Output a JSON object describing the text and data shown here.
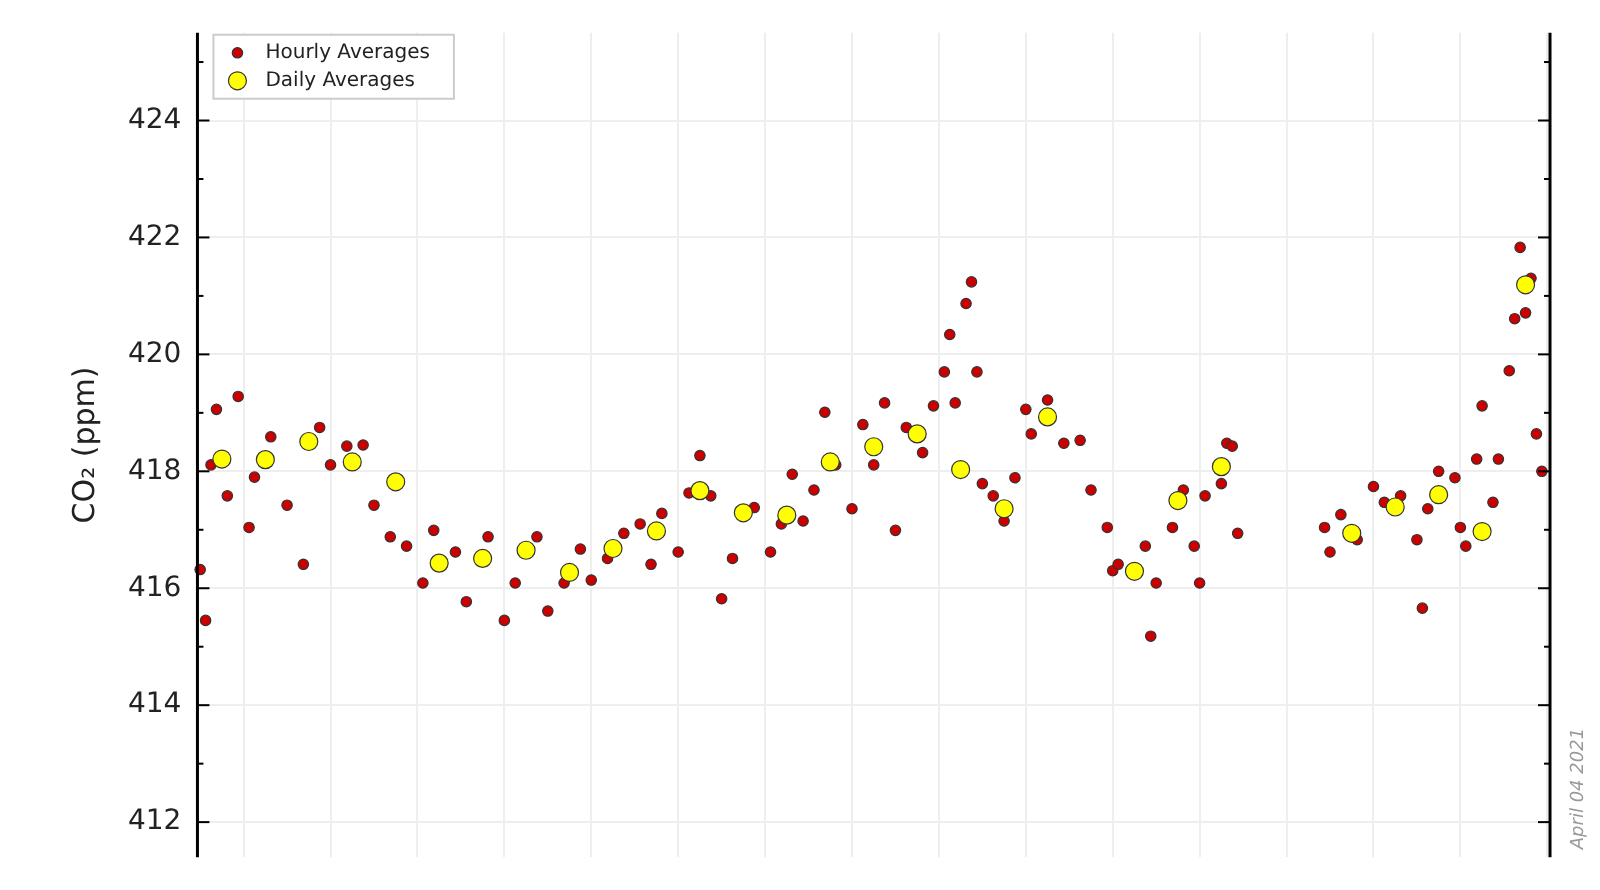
{
  "chart_data": {
    "type": "scatter",
    "ylabel": "CO₂ (ppm)",
    "annotations": [
      "April 04 2021"
    ],
    "categories": [
      null,
      null,
      null,
      null,
      null,
      null,
      null,
      null,
      null,
      null,
      null,
      null,
      null,
      null,
      null,
      null,
      null,
      null,
      null,
      null,
      null,
      null,
      null,
      null,
      null,
      null,
      null,
      null,
      null,
      null,
      null,
      null,
      null,
      null,
      null,
      null,
      null,
      null,
      null,
      null,
      null,
      null,
      null,
      null,
      null,
      null,
      null,
      null,
      null,
      null,
      null,
      null,
      null,
      null,
      null,
      null,
      null,
      null,
      null,
      null,
      null,
      null,
      null,
      null,
      null,
      null,
      null,
      null,
      null,
      null,
      null,
      null,
      null,
      null,
      null,
      null,
      null,
      null,
      null,
      null,
      null,
      null,
      null,
      null,
      null,
      null,
      null,
      null,
      null,
      null,
      null,
      null,
      null,
      null,
      null,
      null,
      null,
      null,
      null,
      null,
      null,
      null,
      null,
      null,
      null,
      null,
      null,
      null,
      null,
      null,
      null,
      null,
      null,
      null,
      null,
      null,
      null,
      null,
      null,
      null,
      null,
      null,
      null,
      null,
      null,
      null,
      null,
      null,
      null,
      null,
      null,
      null,
      null,
      null,
      null,
      null,
      null,
      null,
      null,
      null,
      null,
      null,
      null,
      null,
      null,
      null,
      null,
      null,
      null,
      null,
      null,
      null,
      null,
      null,
      null,
      null,
      null,
      null,
      null,
      null,
      null,
      null,
      null,
      null,
      null,
      null,
      null,
      null,
      null,
      null,
      null,
      null,
      null,
      null,
      null,
      null,
      null,
      null,
      null,
      null,
      null,
      null,
      null,
      null,
      null,
      null,
      null,
      null,
      null,
      null,
      null,
      null,
      null,
      null,
      null,
      null,
      null,
      null,
      null,
      null,
      null,
      null,
      null,
      null,
      null,
      null,
      null,
      null,
      null,
      null,
      null,
      null,
      null,
      null,
      null,
      null,
      null,
      null,
      null,
      null,
      null,
      null,
      null,
      null,
      null,
      null,
      null,
      null,
      null,
      null,
      null,
      null,
      null,
      null,
      null,
      null,
      null,
      null,
      null,
      null,
      null,
      null,
      null,
      null,
      null,
      null,
      null,
      null,
      null
    ],
    "ylim": [
      411.4,
      425.5
    ],
    "yticks": [
      412,
      414,
      416,
      418,
      420,
      422,
      424
    ],
    "grid": true,
    "legend": "top left",
    "tick_labels": "y",
    "marker": "circle",
    "series": [
      {
        "name": "Hourly Averages",
        "color": "#cc0000",
        "values": [
          416.32,
          415.45,
          418.11,
          419.06,
          null,
          417.58,
          null,
          419.28,
          null,
          417.04,
          417.9,
          null,
          null,
          418.59,
          null,
          null,
          417.42,
          null,
          null,
          416.41,
          null,
          null,
          418.75,
          null,
          418.11,
          null,
          null,
          418.43,
          null,
          null,
          418.45,
          null,
          417.42,
          null,
          null,
          416.88,
          null,
          null,
          416.72,
          null,
          null,
          416.09,
          null,
          416.99,
          null,
          null,
          null,
          416.62,
          null,
          415.77,
          null,
          null,
          null,
          416.88,
          null,
          null,
          415.45,
          null,
          416.09,
          null,
          null,
          null,
          416.88,
          null,
          415.61,
          null,
          null,
          416.09,
          null,
          null,
          416.67,
          null,
          416.14,
          null,
          null,
          416.51,
          null,
          null,
          416.94,
          null,
          null,
          417.1,
          null,
          416.41,
          null,
          417.28,
          null,
          null,
          416.62,
          null,
          417.63,
          null,
          418.27,
          null,
          417.58,
          null,
          415.82,
          null,
          416.51,
          null,
          null,
          null,
          417.38,
          null,
          null,
          416.62,
          null,
          417.1,
          null,
          417.95,
          null,
          417.15,
          null,
          417.68,
          null,
          419.01,
          null,
          418.11,
          null,
          null,
          417.36,
          null,
          418.8,
          null,
          418.11,
          null,
          419.17,
          null,
          416.99,
          null,
          418.75,
          null,
          null,
          418.32,
          null,
          419.12,
          null,
          419.7,
          420.34,
          419.17,
          null,
          420.87,
          421.24,
          419.7,
          417.79,
          null,
          417.58,
          null,
          417.15,
          null,
          417.89,
          null,
          419.06,
          418.64,
          null,
          null,
          419.22,
          null,
          null,
          418.48,
          null,
          null,
          418.53,
          null,
          417.68,
          null,
          null,
          417.04,
          416.3,
          416.41,
          null,
          null,
          null,
          null,
          416.72,
          415.18,
          416.09,
          null,
          null,
          417.04,
          null,
          417.68,
          null,
          416.72,
          416.09,
          417.58,
          null,
          null,
          417.79,
          418.48,
          418.43,
          416.94,
          null,
          null,
          null,
          null,
          null,
          null,
          null,
          null,
          null,
          null,
          null,
          null,
          null,
          null,
          null,
          417.04,
          416.62,
          null,
          417.26,
          null,
          null,
          416.83,
          null,
          null,
          417.74,
          null,
          417.47,
          null,
          null,
          417.58,
          null,
          null,
          416.83,
          415.66,
          417.36,
          null,
          418.0,
          null,
          null,
          417.89,
          417.04,
          416.72,
          null,
          418.21,
          419.12,
          null,
          417.47,
          418.21,
          null,
          419.72,
          420.61,
          421.83,
          420.71,
          421.3,
          418.64,
          418.0,
          null
        ]
      },
      {
        "name": "Daily Averages",
        "color": "#ffff00",
        "values": [
          null,
          null,
          null,
          null,
          418.21,
          null,
          null,
          null,
          null,
          null,
          null,
          null,
          418.2,
          null,
          null,
          null,
          null,
          null,
          null,
          null,
          418.51,
          null,
          null,
          null,
          null,
          null,
          null,
          null,
          418.16,
          null,
          null,
          null,
          null,
          null,
          null,
          null,
          417.82,
          null,
          null,
          null,
          null,
          null,
          null,
          null,
          416.43,
          null,
          null,
          null,
          null,
          null,
          null,
          null,
          416.51,
          null,
          null,
          null,
          null,
          null,
          null,
          null,
          416.65,
          null,
          null,
          null,
          null,
          null,
          null,
          null,
          416.27,
          null,
          null,
          null,
          null,
          null,
          null,
          null,
          416.68,
          null,
          null,
          null,
          null,
          null,
          null,
          null,
          416.98,
          null,
          null,
          null,
          null,
          null,
          null,
          null,
          417.67,
          null,
          null,
          null,
          null,
          null,
          null,
          null,
          417.29,
          null,
          null,
          null,
          null,
          null,
          null,
          null,
          417.25,
          null,
          null,
          null,
          null,
          null,
          null,
          null,
          418.16,
          null,
          null,
          null,
          null,
          null,
          null,
          null,
          418.42,
          null,
          null,
          null,
          null,
          null,
          null,
          null,
          418.64,
          null,
          null,
          null,
          null,
          null,
          null,
          null,
          418.03,
          null,
          null,
          null,
          null,
          null,
          null,
          null,
          417.36,
          null,
          null,
          null,
          null,
          null,
          null,
          null,
          418.93,
          null,
          null,
          null,
          null,
          null,
          null,
          null,
          null,
          null,
          null,
          null,
          null,
          null,
          null,
          null,
          416.29,
          null,
          null,
          null,
          null,
          null,
          null,
          null,
          417.5,
          null,
          null,
          null,
          null,
          null,
          null,
          null,
          418.08,
          null,
          null,
          null,
          null,
          null,
          null,
          null,
          null,
          null,
          null,
          null,
          null,
          null,
          null,
          null,
          null,
          null,
          null,
          null,
          null,
          null,
          null,
          null,
          416.94,
          null,
          null,
          null,
          null,
          null,
          null,
          null,
          417.39,
          null,
          null,
          null,
          null,
          null,
          null,
          null,
          417.6,
          null,
          null,
          null,
          null,
          null,
          null,
          null,
          416.97,
          null,
          null,
          null,
          null,
          null,
          null,
          null,
          421.19,
          null,
          null,
          null,
          null
        ]
      }
    ]
  }
}
